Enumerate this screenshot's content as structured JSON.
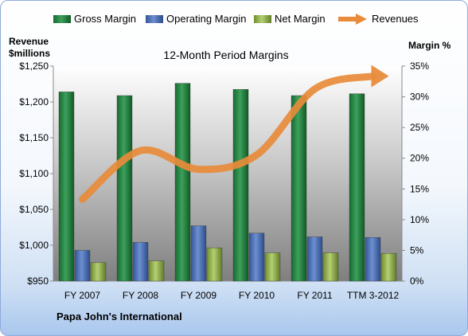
{
  "chart_data": {
    "type": "bar",
    "title": "12-Month Period Margins",
    "left_axis_label_line1": "Revenue",
    "left_axis_label_line2": "$millions",
    "right_axis_label": "Margin %",
    "footer": "Papa John's International",
    "categories": [
      "FY 2007",
      "FY 2008",
      "FY 2009",
      "FY 2010",
      "FY 2011",
      "TTM 3-2012"
    ],
    "series": [
      {
        "name": "Gross Margin",
        "axis": "right",
        "values": [
          30.8,
          30.2,
          32.2,
          31.2,
          30.2,
          30.5
        ],
        "color": "#1e7a3c"
      },
      {
        "name": "Operating Margin",
        "axis": "right",
        "values": [
          5.0,
          6.3,
          9.0,
          7.8,
          7.2,
          7.1
        ],
        "color": "#4a6fb0"
      },
      {
        "name": "Net Margin",
        "axis": "right",
        "values": [
          3.0,
          3.3,
          5.4,
          4.6,
          4.6,
          4.5
        ],
        "color": "#8fae4a"
      },
      {
        "name": "Revenues",
        "type": "line",
        "axis": "left",
        "values": [
          1064,
          1132,
          1106,
          1126,
          1218,
          1236
        ],
        "color": "#e88b3a"
      }
    ],
    "left_axis": {
      "min": 950,
      "max": 1250,
      "step": 50,
      "tick_labels": [
        "$950",
        "$1,000",
        "$1,050",
        "$1,100",
        "$1,150",
        "$1,200",
        "$1,250"
      ]
    },
    "right_axis": {
      "min": 0,
      "max": 35,
      "step": 5,
      "tick_labels": [
        "0%",
        "5%",
        "10%",
        "15%",
        "20%",
        "25%",
        "30%",
        "35%"
      ]
    },
    "grid": false,
    "legend_position": "top"
  }
}
